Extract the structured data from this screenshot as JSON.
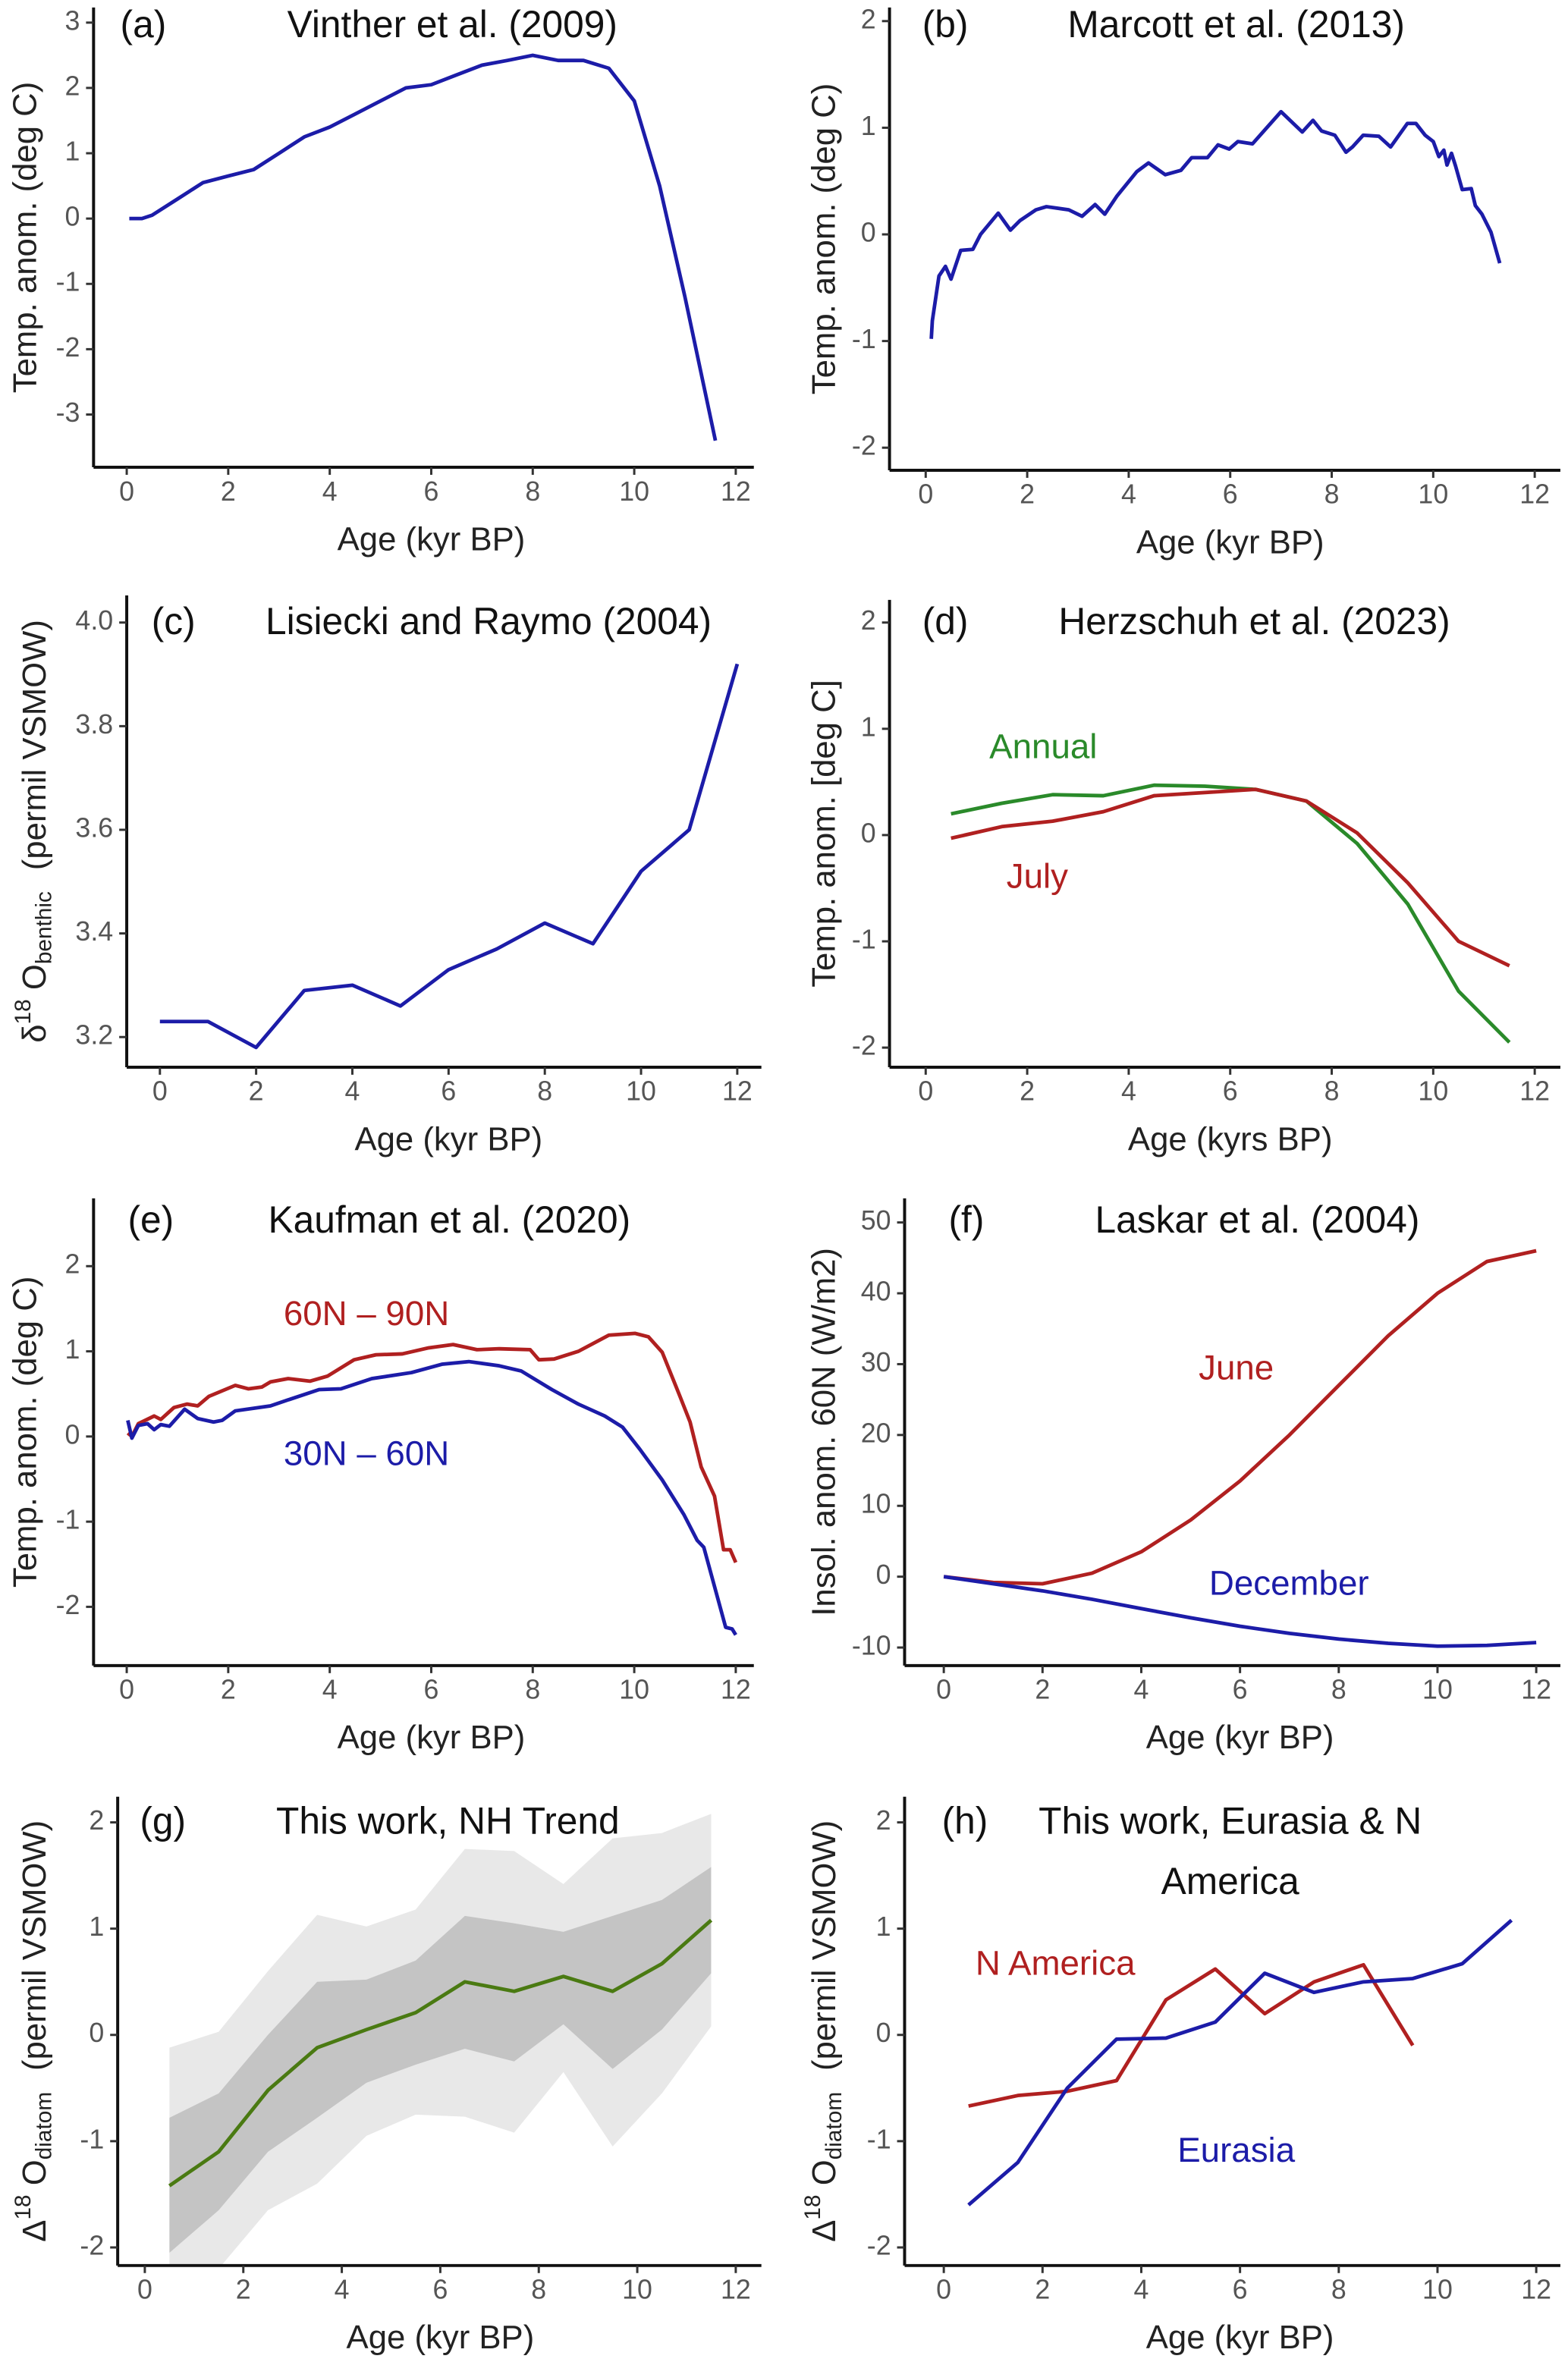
{
  "chart_data": [
    {
      "type": "line",
      "panel": "(a)",
      "title": "Vinther et al. (2009)",
      "xlabel": "Age (kyr BP)",
      "ylabel": "Temp. anom. (deg C)",
      "xlim": [
        0,
        12
      ],
      "ylim": [
        -3,
        3
      ],
      "xticks": [
        "0",
        "2",
        "4",
        "6",
        "8",
        "10",
        "12"
      ],
      "yticks": [
        "-3",
        "-2",
        "-1",
        "0",
        "1",
        "2",
        "3"
      ],
      "series": [
        {
          "color": "#1c1ca8",
          "x": [
            0.05,
            0.3,
            0.5,
            1,
            1.5,
            2,
            2.5,
            3,
            3.5,
            4,
            4.5,
            5,
            5.5,
            6,
            6.5,
            7,
            7.5,
            8,
            8.5,
            9,
            9.5,
            10,
            10.5,
            11,
            11.6
          ],
          "y": [
            0,
            0,
            0.05,
            0.3,
            0.55,
            0.65,
            0.75,
            1.0,
            1.25,
            1.4,
            1.6,
            1.8,
            2.0,
            2.05,
            2.2,
            2.35,
            2.42,
            2.5,
            2.42,
            2.42,
            2.3,
            1.8,
            0.5,
            -1.2,
            -3.4
          ]
        }
      ]
    },
    {
      "type": "line",
      "panel": "(b)",
      "title": "Marcott et al. (2013)",
      "xlabel": "Age (kyr BP)",
      "ylabel": "Temp. anom. (deg C)",
      "xlim": [
        0,
        12
      ],
      "ylim": [
        -2,
        2
      ],
      "xticks": [
        "0",
        "2",
        "4",
        "6",
        "8",
        "10",
        "12"
      ],
      "yticks": [
        "-2",
        "-1",
        "0",
        "1",
        "2"
      ],
      "series": [
        {
          "color": "#1c1ca8",
          "x": [
            0.11,
            0.13,
            0.26,
            0.39,
            0.5,
            0.69,
            0.93,
            1.08,
            1.43,
            1.67,
            1.86,
            2.17,
            2.38,
            2.82,
            3.08,
            3.34,
            3.53,
            3.77,
            4.16,
            4.39,
            4.72,
            5.03,
            5.24,
            5.55,
            5.76,
            5.98,
            6.15,
            6.44,
            6.72,
            7.0,
            7.42,
            7.63,
            7.8,
            8.06,
            8.28,
            8.41,
            8.62,
            8.93,
            9.16,
            9.49,
            9.66,
            9.84,
            10.0,
            10.11,
            10.21,
            10.27,
            10.36,
            10.44,
            10.57,
            10.75,
            10.83,
            10.96,
            11.14,
            11.31
          ],
          "y": [
            -0.98,
            -0.81,
            -0.39,
            -0.3,
            -0.42,
            -0.15,
            -0.14,
            0.0,
            0.2,
            0.04,
            0.13,
            0.23,
            0.26,
            0.23,
            0.17,
            0.28,
            0.19,
            0.36,
            0.59,
            0.67,
            0.56,
            0.6,
            0.72,
            0.72,
            0.84,
            0.8,
            0.87,
            0.85,
            1.0,
            1.15,
            0.96,
            1.07,
            0.97,
            0.93,
            0.77,
            0.82,
            0.93,
            0.92,
            0.82,
            1.04,
            1.04,
            0.93,
            0.87,
            0.73,
            0.79,
            0.65,
            0.76,
            0.64,
            0.42,
            0.43,
            0.27,
            0.19,
            0.02,
            -0.27
          ]
        }
      ]
    },
    {
      "type": "line",
      "panel": "(c)",
      "title": "Lisiecki and Raymo (2004)",
      "xlabel": "Age (kyr BP)",
      "ylabel": {
        "prefix": "δ",
        "sup": "18",
        "main": " O",
        "sub": "benthic",
        "suffix": "(permil VSMOW)"
      },
      "xlim": [
        0,
        12
      ],
      "ylim": [
        3.2,
        4.0
      ],
      "xticks": [
        "0",
        "2",
        "4",
        "6",
        "8",
        "10",
        "12"
      ],
      "yticks": [
        "3.2",
        "3.4",
        "3.6",
        "3.8",
        "4.0"
      ],
      "series": [
        {
          "color": "#1c1ca8",
          "x": [
            0,
            1,
            2,
            3,
            4,
            5,
            6,
            7,
            8,
            9,
            10,
            11,
            12
          ],
          "y": [
            3.23,
            3.23,
            3.18,
            3.29,
            3.3,
            3.26,
            3.33,
            3.37,
            3.42,
            3.38,
            3.52,
            3.6,
            3.92
          ]
        }
      ]
    },
    {
      "type": "line",
      "panel": "(d)",
      "title": "Herzschuh et al. (2023)",
      "xlabel": "Age (kyrs BP)",
      "ylabel": "Temp. anom. [deg C]",
      "xlim": [
        0,
        12
      ],
      "ylim": [
        -2,
        2
      ],
      "xticks": [
        "0",
        "2",
        "4",
        "6",
        "8",
        "10",
        "12"
      ],
      "yticks": [
        "-2",
        "-1",
        "0",
        "1",
        "2"
      ],
      "series": [
        {
          "name": "Annual",
          "color": "#2a8a2a",
          "x": [
            0.5,
            1.5,
            2.5,
            3.5,
            4.5,
            5.5,
            6.5,
            7.5,
            8.5,
            9.5,
            10.5,
            11.5
          ],
          "y": [
            0.2,
            0.3,
            0.38,
            0.37,
            0.47,
            0.46,
            0.43,
            0.32,
            -0.08,
            -0.65,
            -1.47,
            -1.95
          ]
        },
        {
          "name": "July",
          "color": "#b02020",
          "x": [
            0.5,
            1.5,
            2.5,
            3.5,
            4.5,
            5.5,
            6.5,
            7.5,
            8.5,
            9.5,
            10.5,
            11.5
          ],
          "y": [
            -0.03,
            0.08,
            0.13,
            0.22,
            0.37,
            0.4,
            0.43,
            0.32,
            0.02,
            -0.45,
            -1.0,
            -1.23
          ]
        }
      ]
    },
    {
      "type": "line",
      "panel": "(e)",
      "title": "Kaufman et al. (2020)",
      "xlabel": "Age (kyr BP)",
      "ylabel": "Temp. anom. (deg C)",
      "xlim": [
        0,
        12
      ],
      "ylim": [
        -2,
        2
      ],
      "xticks": [
        "0",
        "2",
        "4",
        "6",
        "8",
        "10",
        "12"
      ],
      "yticks": [
        "-2",
        "-1",
        "0",
        "1",
        "2"
      ],
      "series": [
        {
          "name": "60N – 90N",
          "color": "#b02020",
          "x": [
            0.02,
            0.1,
            0.23,
            0.54,
            0.67,
            0.93,
            1.19,
            1.4,
            1.62,
            2.14,
            2.4,
            2.66,
            2.83,
            3.18,
            3.61,
            3.96,
            4.48,
            4.91,
            5.43,
            5.95,
            6.43,
            6.9,
            7.34,
            7.95,
            8.12,
            8.42,
            8.9,
            9.5,
            10.02,
            10.28,
            10.55,
            10.9,
            11.1,
            11.32,
            11.58,
            11.76,
            11.89,
            12.0
          ],
          "y": [
            0.04,
            0,
            0.15,
            0.24,
            0.2,
            0.34,
            0.38,
            0.36,
            0.47,
            0.6,
            0.56,
            0.58,
            0.64,
            0.68,
            0.65,
            0.71,
            0.9,
            0.96,
            0.97,
            1.04,
            1.08,
            1.02,
            1.03,
            1.02,
            0.9,
            0.91,
            1.0,
            1.19,
            1.21,
            1.17,
            0.99,
            0.47,
            0.17,
            -0.36,
            -0.7,
            -1.33,
            -1.33,
            -1.48
          ]
        },
        {
          "name": "30N – 60N",
          "color": "#1c1ca8",
          "x": [
            0.02,
            0.1,
            0.23,
            0.41,
            0.54,
            0.67,
            0.84,
            1.14,
            1.4,
            1.71,
            1.88,
            2.14,
            2.83,
            3.18,
            3.79,
            4.22,
            4.83,
            5.61,
            6.22,
            6.74,
            7.34,
            7.77,
            8.38,
            8.9,
            9.42,
            9.77,
            10.11,
            10.55,
            10.98,
            11.24,
            11.37,
            11.8,
            11.93,
            12.0
          ],
          "y": [
            0.19,
            -0.02,
            0.13,
            0.15,
            0.08,
            0.14,
            0.12,
            0.32,
            0.21,
            0.17,
            0.19,
            0.3,
            0.36,
            0.43,
            0.55,
            0.56,
            0.68,
            0.75,
            0.85,
            0.88,
            0.83,
            0.77,
            0.55,
            0.38,
            0.24,
            0.11,
            -0.15,
            -0.51,
            -0.92,
            -1.22,
            -1.3,
            -2.24,
            -2.26,
            -2.33
          ]
        }
      ]
    },
    {
      "type": "line",
      "panel": "(f)",
      "title": "Laskar et al. (2004)",
      "xlabel": "Age (kyr BP)",
      "ylabel": "Insol. anom. 60N (W/m2)",
      "xlim": [
        0,
        12
      ],
      "ylim": [
        -10,
        50
      ],
      "xticks": [
        "0",
        "2",
        "4",
        "6",
        "8",
        "10",
        "12"
      ],
      "yticks": [
        "-10",
        "0",
        "10",
        "20",
        "30",
        "40",
        "50"
      ],
      "series": [
        {
          "name": "June",
          "color": "#b02020",
          "x": [
            0,
            1,
            2,
            3,
            4,
            5,
            6,
            7,
            8,
            9,
            10,
            11,
            12
          ],
          "y": [
            0,
            -0.8,
            -1,
            0.5,
            3.5,
            8,
            13.5,
            20,
            27,
            34,
            40,
            44.5,
            46
          ]
        },
        {
          "name": "December",
          "color": "#1c1ca8",
          "x": [
            0,
            1,
            2,
            3,
            4,
            5,
            6,
            7,
            8,
            9,
            10,
            11,
            12
          ],
          "y": [
            0,
            -1,
            -2,
            -3.2,
            -4.5,
            -5.8,
            -7,
            -8,
            -8.8,
            -9.4,
            -9.8,
            -9.7,
            -9.3
          ]
        }
      ]
    },
    {
      "type": "area",
      "panel": "(g)",
      "title": "This work, NH Trend",
      "xlabel": "Age (kyr BP)",
      "ylabel": {
        "prefix": "Δ",
        "sup": "18",
        "main": " O",
        "sub": "diatom",
        "suffix": "(permil VSMOW)"
      },
      "xlim": [
        0,
        12
      ],
      "ylim": [
        -2,
        2
      ],
      "xticks": [
        "0",
        "2",
        "4",
        "6",
        "8",
        "10",
        "12"
      ],
      "yticks": [
        "-2",
        "-1",
        "0",
        "1",
        "2"
      ],
      "x": [
        0.5,
        1.5,
        2.5,
        3.5,
        4.5,
        5.5,
        6.5,
        7.5,
        8.5,
        9.5,
        10.5,
        11.5
      ],
      "bands": [
        {
          "color": "#e8e8e8",
          "upper": [
            -0.12,
            0.03,
            0.6,
            1.13,
            1.02,
            1.18,
            1.75,
            1.73,
            1.42,
            1.85,
            1.9,
            2.08
          ],
          "lower": [
            -2.2,
            -2.2,
            -1.65,
            -1.4,
            -0.95,
            -0.75,
            -0.77,
            -0.92,
            -0.35,
            -1.05,
            -0.55,
            0.08
          ]
        },
        {
          "color": "#c4c4c4",
          "upper": [
            -0.78,
            -0.55,
            0.0,
            0.5,
            0.52,
            0.7,
            1.12,
            1.05,
            0.97,
            1.12,
            1.27,
            1.58
          ],
          "lower": [
            -2.05,
            -1.65,
            -1.1,
            -0.78,
            -0.45,
            -0.28,
            -0.13,
            -0.25,
            0.1,
            -0.32,
            0.05,
            0.58
          ]
        }
      ],
      "series": [
        {
          "color": "#4a7a12",
          "x": [
            0.5,
            1.5,
            2.5,
            3.5,
            4.5,
            5.5,
            6.5,
            7.5,
            8.5,
            9.5,
            10.5,
            11.5
          ],
          "y": [
            -1.42,
            -1.1,
            -0.52,
            -0.12,
            0.05,
            0.21,
            0.5,
            0.41,
            0.55,
            0.41,
            0.67,
            1.08
          ]
        }
      ]
    },
    {
      "type": "line",
      "panel": "(h)",
      "title": "This work, Eurasia & N",
      "title_line2": "America",
      "xlabel": "Age (kyr BP)",
      "ylabel": {
        "prefix": "Δ",
        "sup": "18",
        "main": " O",
        "sub": "diatom",
        "suffix": "(permil VSMOW)"
      },
      "xlim": [
        0,
        12
      ],
      "ylim": [
        -2,
        2
      ],
      "xticks": [
        "0",
        "2",
        "4",
        "6",
        "8",
        "10",
        "12"
      ],
      "yticks": [
        "-2",
        "-1",
        "0",
        "1",
        "2"
      ],
      "series": [
        {
          "name": "N America",
          "color": "#b02020",
          "x": [
            0.5,
            1.5,
            2.5,
            3.5,
            4.5,
            5.5,
            6.5,
            7.5,
            8.5,
            9.5
          ],
          "y": [
            -0.67,
            -0.57,
            -0.53,
            -0.43,
            0.33,
            0.62,
            0.2,
            0.5,
            0.66,
            -0.1
          ]
        },
        {
          "name": "Eurasia",
          "color": "#1c1ca8",
          "x": [
            0.5,
            1.5,
            2.5,
            3.5,
            4.5,
            5.5,
            6.5,
            7.5,
            8.5,
            9.5,
            10.5,
            11.5
          ],
          "y": [
            -1.6,
            -1.2,
            -0.5,
            -0.04,
            -0.03,
            0.12,
            0.58,
            0.4,
            0.5,
            0.53,
            0.67,
            1.08
          ]
        }
      ]
    }
  ]
}
